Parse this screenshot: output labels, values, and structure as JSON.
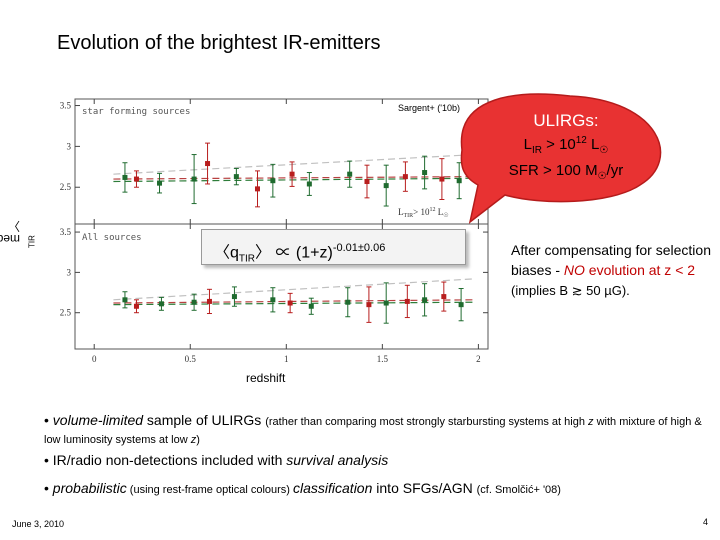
{
  "slide": {
    "title": "Evolution of the brightest IR-emitters",
    "citation": "Sargent+ ('10b)",
    "footer_date": "June 3, 2010",
    "page_number": "4"
  },
  "chart_data": {
    "type": "scatter",
    "xlabel": "redshift",
    "ylabel_main": "median 〈q",
    "ylabel_sub": "TIR",
    "ylabel_end": "〉",
    "xlim": [
      -0.1,
      2.05
    ],
    "xticks": [
      0,
      0.5,
      1,
      1.5,
      2
    ],
    "xtick_labels": [
      "0",
      "0.5",
      "1",
      "1.5",
      "2"
    ],
    "panels": [
      {
        "label": "star forming sources",
        "legend_note": "L",
        "legend_note_sub": "TIR",
        "legend_note_end": "> 10",
        "legend_note_sup": "12",
        "legend_note_unit": " L",
        "legend_note_unit_sub": "☉",
        "ylim": [
          2.05,
          3.58
        ],
        "yticks": [
          2.5,
          3,
          3.5
        ],
        "ytick_labels": [
          "2.5",
          "3",
          "3.5"
        ],
        "series": [
          {
            "color": "#1f6b2f",
            "points": [
              {
                "x": 0.16,
                "y": 2.62,
                "err": 0.18
              },
              {
                "x": 0.34,
                "y": 2.55,
                "err": 0.12
              },
              {
                "x": 0.52,
                "y": 2.6,
                "err": 0.3
              },
              {
                "x": 0.74,
                "y": 2.63,
                "err": 0.1
              },
              {
                "x": 0.93,
                "y": 2.58,
                "err": 0.2
              },
              {
                "x": 1.12,
                "y": 2.54,
                "err": 0.14
              },
              {
                "x": 1.33,
                "y": 2.66,
                "err": 0.16
              },
              {
                "x": 1.52,
                "y": 2.52,
                "err": 0.25
              },
              {
                "x": 1.72,
                "y": 2.68,
                "err": 0.2
              },
              {
                "x": 1.9,
                "y": 2.58,
                "err": 0.22
              }
            ]
          },
          {
            "color": "#b81e1e",
            "points": [
              {
                "x": 0.22,
                "y": 2.6,
                "err": 0.1
              },
              {
                "x": 0.59,
                "y": 2.79,
                "err": 0.25
              },
              {
                "x": 0.85,
                "y": 2.48,
                "err": 0.22
              },
              {
                "x": 1.03,
                "y": 2.66,
                "err": 0.15
              },
              {
                "x": 1.42,
                "y": 2.57,
                "err": 0.2
              },
              {
                "x": 1.62,
                "y": 2.63,
                "err": 0.18
              },
              {
                "x": 1.81,
                "y": 2.6,
                "err": 0.25
              }
            ]
          }
        ],
        "trend_lines": [
          {
            "y0": 2.57,
            "y1": 2.61,
            "color": "#2e7d3a"
          },
          {
            "y0": 2.6,
            "y1": 2.63,
            "color": "#b84040"
          },
          {
            "y0": 2.66,
            "y1": 2.9,
            "color": "#c0c0c0"
          }
        ]
      },
      {
        "label": "All sources",
        "ylim": [
          2.05,
          3.6
        ],
        "yticks": [
          2.5,
          3,
          3.5
        ],
        "ytick_labels": [
          "2.5",
          "3",
          "3.5"
        ],
        "series": [
          {
            "color": "#1f6b2f",
            "points": [
              {
                "x": 0.16,
                "y": 2.66,
                "err": 0.1
              },
              {
                "x": 0.35,
                "y": 2.61,
                "err": 0.08
              },
              {
                "x": 0.52,
                "y": 2.63,
                "err": 0.1
              },
              {
                "x": 0.73,
                "y": 2.7,
                "err": 0.12
              },
              {
                "x": 0.93,
                "y": 2.66,
                "err": 0.15
              },
              {
                "x": 1.13,
                "y": 2.58,
                "err": 0.1
              },
              {
                "x": 1.32,
                "y": 2.63,
                "err": 0.18
              },
              {
                "x": 1.52,
                "y": 2.62,
                "err": 0.25
              },
              {
                "x": 1.72,
                "y": 2.66,
                "err": 0.2
              },
              {
                "x": 1.91,
                "y": 2.6,
                "err": 0.2
              }
            ]
          },
          {
            "color": "#b81e1e",
            "points": [
              {
                "x": 0.22,
                "y": 2.58,
                "err": 0.08
              },
              {
                "x": 0.6,
                "y": 2.64,
                "err": 0.15
              },
              {
                "x": 1.02,
                "y": 2.62,
                "err": 0.12
              },
              {
                "x": 1.43,
                "y": 2.6,
                "err": 0.22
              },
              {
                "x": 1.63,
                "y": 2.64,
                "err": 0.2
              },
              {
                "x": 1.82,
                "y": 2.7,
                "err": 0.18
              }
            ]
          }
        ],
        "trend_lines": [
          {
            "y0": 2.6,
            "y1": 2.63,
            "color": "#2e7d3a"
          },
          {
            "y0": 2.62,
            "y1": 2.66,
            "color": "#b84040"
          },
          {
            "y0": 2.66,
            "y1": 2.92,
            "color": "#c0c0c0"
          }
        ]
      }
    ]
  },
  "callout": {
    "heading": "ULIRGs:",
    "line1_a": "L",
    "line1_sub": "IR",
    "line1_b": " > 10",
    "line1_sup": "12",
    "line1_c": " L",
    "line1_sun": "☉",
    "line2_a": "SFR > 100 M",
    "line2_sun": "☉",
    "line2_b": "/yr",
    "fill_color": "#e83232"
  },
  "formula": {
    "lhs": "〈q",
    "lhs_sub": "TIR",
    "lhs_end": "〉 ∝ (1+z)",
    "exponent": "-0.01±0.06"
  },
  "compensation": {
    "text_a": "After compensating for selection biases - ",
    "text_no": "NO",
    "text_b": " evolution at z < 2",
    "note": "(implies B ≳ 50 µG)."
  },
  "bullets": {
    "b1_a": "• ",
    "b1_b": "volume-limited",
    "b1_c": " sample of ULIRGs ",
    "b1_small_a": "(rather than comparing most strongly starbursting systems at high ",
    "b1_small_z": "z",
    "b1_small_b": " with mixture of high & low luminosity systems at low ",
    "b1_small_z2": "z",
    "b1_small_c": ")",
    "b2_a": "• IR/radio non-detections included with ",
    "b2_b": "survival analysis",
    "b3_a": "• ",
    "b3_b": "probabilistic",
    "b3_small": " (using rest-frame optical colours) ",
    "b3_c": "classification",
    "b3_d": " into SFGs/AGN ",
    "b3_small2": "(cf. Smolčić+ '08)"
  }
}
